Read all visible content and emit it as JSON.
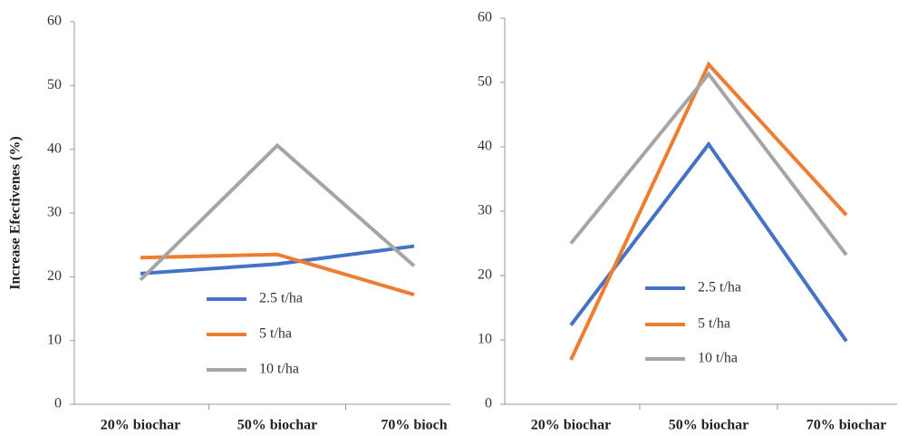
{
  "chart_data": [
    {
      "type": "line",
      "y_label": "Increase Efectivenes  (%)",
      "categories": [
        "20% biochar",
        "50% biochar",
        "70% bioch"
      ],
      "series": [
        {
          "name": "2.5 t/ha",
          "color": "#4472c4",
          "values": [
            20.5,
            22,
            24.8
          ]
        },
        {
          "name": "5 t/ha",
          "color": "#ed7d31",
          "values": [
            23,
            23.5,
            17.2
          ]
        },
        {
          "name": "10 t/ha",
          "color": "#a5a5a5",
          "values": [
            19.5,
            40.6,
            21.7
          ]
        }
      ],
      "ylim": [
        0,
        60
      ],
      "yticks": [
        0,
        10,
        20,
        30,
        40,
        50,
        60
      ]
    },
    {
      "type": "line",
      "categories": [
        "20% biochar",
        "50% biochar",
        "70% biochar"
      ],
      "series": [
        {
          "name": "2.5 t/ha",
          "color": "#4472c4",
          "values": [
            12.3,
            40.4,
            9.8
          ]
        },
        {
          "name": "5 t/ha",
          "color": "#ed7d31",
          "values": [
            6.9,
            52.8,
            29.4
          ]
        },
        {
          "name": "10 t/ha",
          "color": "#a5a5a5",
          "values": [
            25,
            51.3,
            23.2
          ]
        }
      ],
      "ylim": [
        0,
        60
      ],
      "yticks": [
        0,
        10,
        20,
        30,
        40,
        50,
        60
      ]
    }
  ]
}
